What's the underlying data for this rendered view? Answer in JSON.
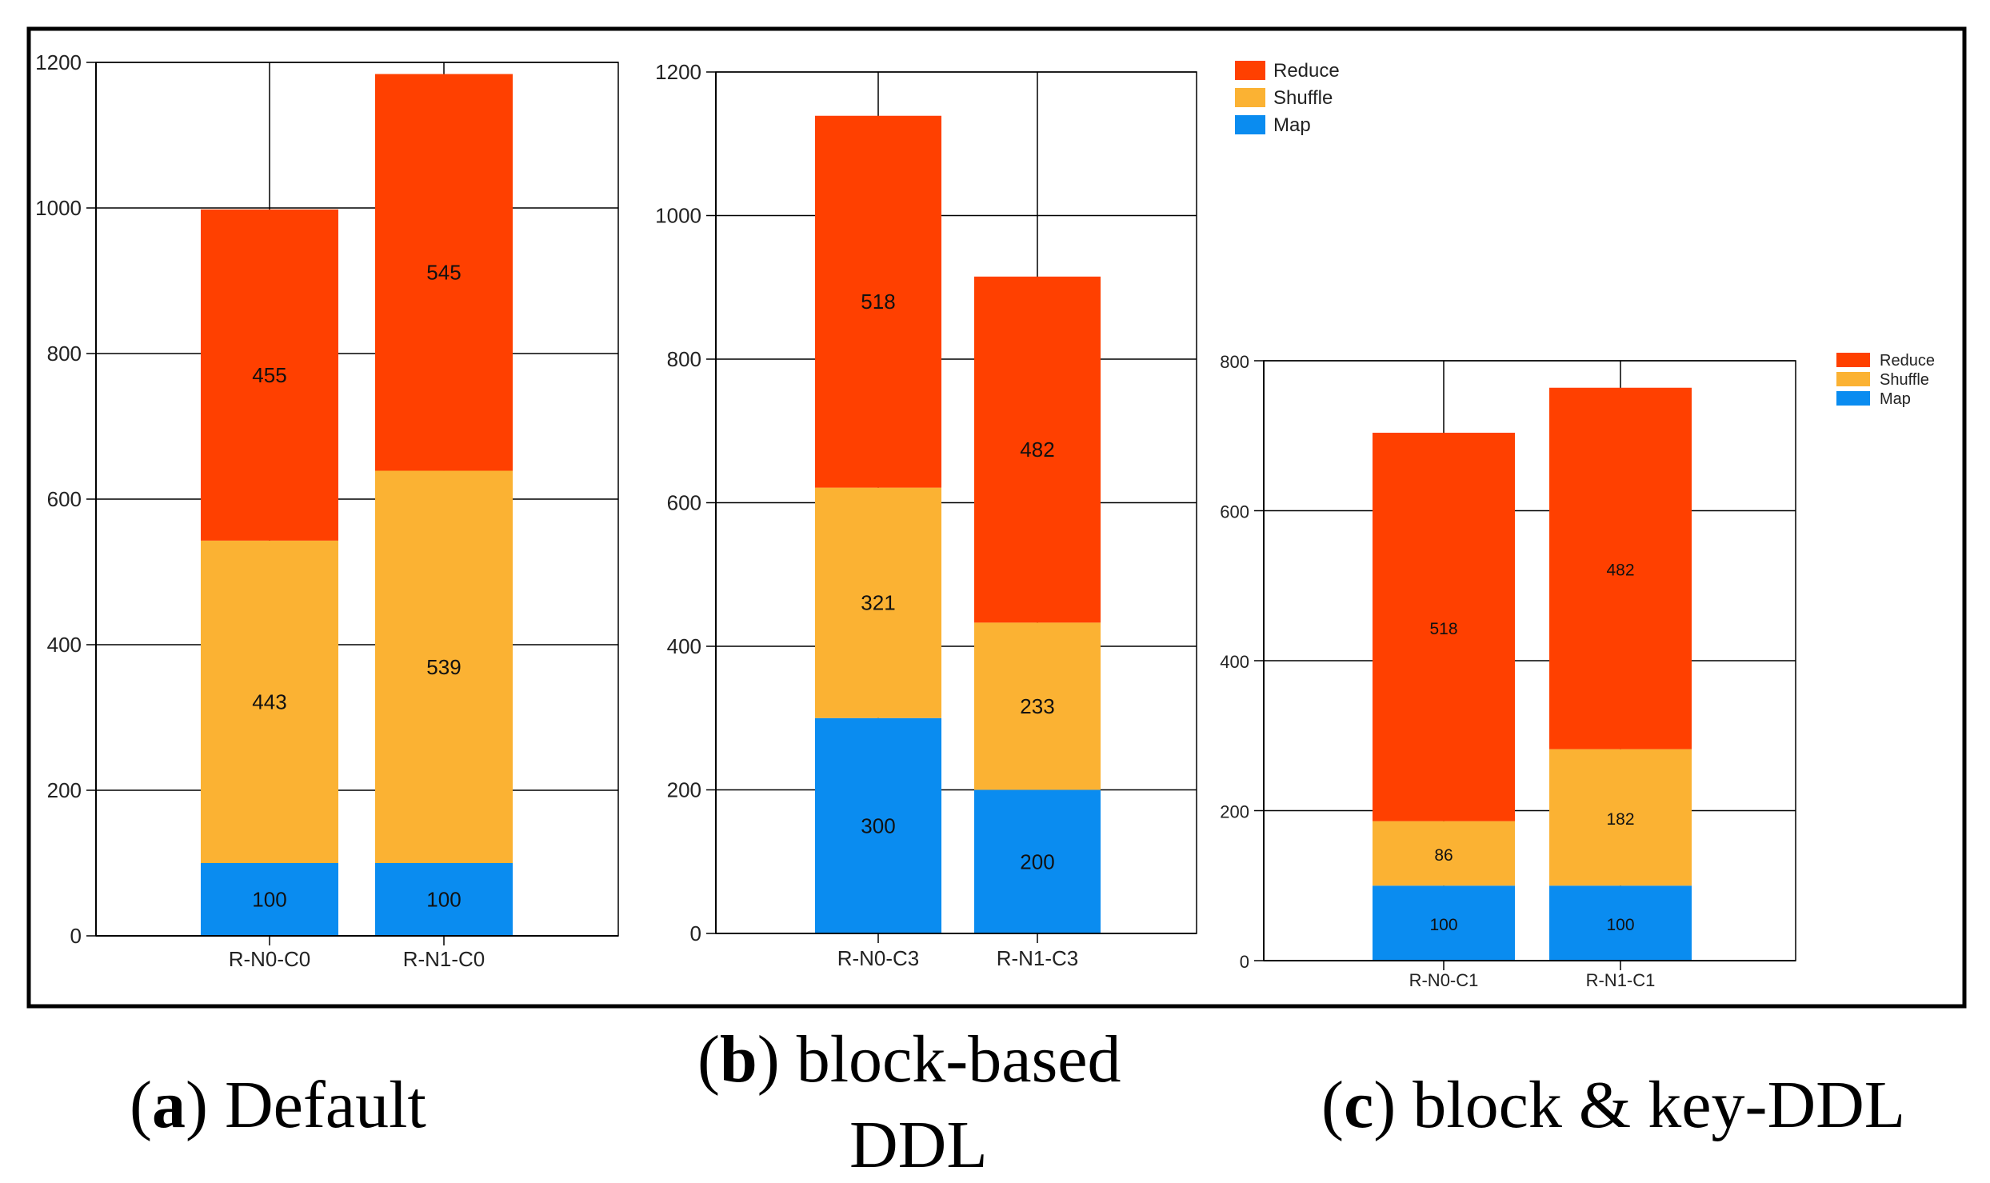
{
  "chart_data": [
    {
      "type": "bar",
      "stacked": true,
      "panel": "a",
      "categories": [
        "R-N0-C0",
        "R-N1-C0"
      ],
      "series": [
        {
          "name": "Map",
          "color": "#0a8cf0",
          "values": [
            100,
            100
          ]
        },
        {
          "name": "Shuffle",
          "color": "#fbb233",
          "values": [
            443,
            539
          ]
        },
        {
          "name": "Reduce",
          "color": "#ff4000",
          "values": [
            455,
            545
          ]
        }
      ],
      "ylim": [
        0,
        1200
      ],
      "yticks": [
        0,
        200,
        400,
        600,
        800,
        1000,
        1200
      ],
      "legend": false,
      "grid": true
    },
    {
      "type": "bar",
      "stacked": true,
      "panel": "b",
      "categories": [
        "R-N0-C3",
        "R-N1-C3"
      ],
      "series": [
        {
          "name": "Map",
          "color": "#0a8cf0",
          "values": [
            300,
            200
          ]
        },
        {
          "name": "Shuffle",
          "color": "#fbb233",
          "values": [
            321,
            233
          ]
        },
        {
          "name": "Reduce",
          "color": "#ff4000",
          "values": [
            518,
            482
          ]
        }
      ],
      "ylim": [
        0,
        1200
      ],
      "yticks": [
        0,
        200,
        400,
        600,
        800,
        1000,
        1200
      ],
      "legend": "top-right",
      "grid": true
    },
    {
      "type": "bar",
      "stacked": true,
      "panel": "c",
      "categories": [
        "R-N0-C1",
        "R-N1-C1"
      ],
      "series": [
        {
          "name": "Map",
          "color": "#0a8cf0",
          "values": [
            100,
            100
          ]
        },
        {
          "name": "Shuffle",
          "color": "#fbb233",
          "values": [
            86,
            182
          ]
        },
        {
          "name": "Reduce",
          "color": "#ff4000",
          "values": [
            518,
            482
          ]
        }
      ],
      "ylim": [
        0,
        800
      ],
      "yticks": [
        0,
        200,
        400,
        600,
        800
      ],
      "legend": "top-right",
      "grid": true
    }
  ],
  "legend_labels": [
    "Reduce",
    "Shuffle",
    "Map"
  ],
  "captions": [
    {
      "letter": "a",
      "text": "Default"
    },
    {
      "letter": "b",
      "text": "block-based",
      "text2": "DDL"
    },
    {
      "letter": "c",
      "text": "block & key-DDL"
    }
  ]
}
